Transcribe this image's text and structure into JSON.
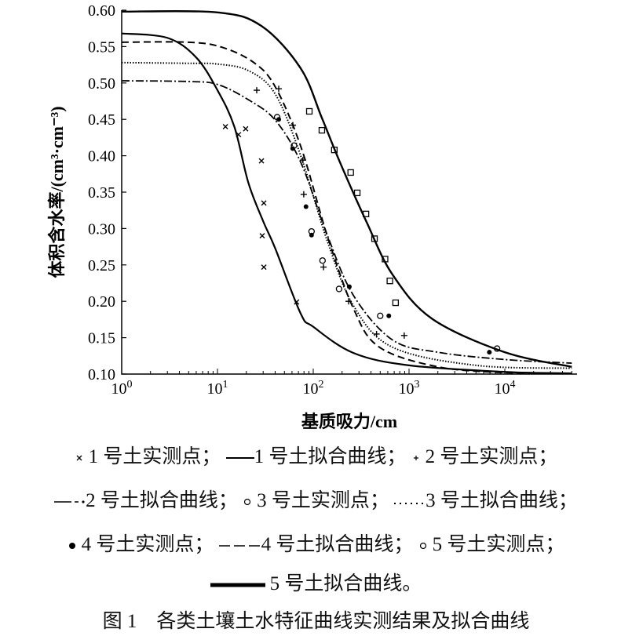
{
  "chart_data": {
    "type": "scatter",
    "title": "",
    "xlabel": "基质吸力/cm",
    "ylabel": "体积含水率/(cm³·cm⁻³)",
    "x_scale": "log",
    "xlim": [
      1,
      50000
    ],
    "ylim": [
      0.1,
      0.6
    ],
    "x_ticks": [
      1,
      10,
      100,
      1000,
      10000
    ],
    "x_tick_labels": [
      {
        "base": "10",
        "exp": "0"
      },
      {
        "base": "10",
        "exp": "1"
      },
      {
        "base": "10",
        "exp": "2"
      },
      {
        "base": "10",
        "exp": "3"
      },
      {
        "base": "10",
        "exp": "4"
      }
    ],
    "y_ticks": [
      0.1,
      0.15,
      0.2,
      0.25,
      0.3,
      0.35,
      0.4,
      0.45,
      0.5,
      0.55,
      0.6
    ],
    "y_tick_labels": [
      "0.10",
      "0.15",
      "0.20",
      "0.25",
      "0.30",
      "0.35",
      "0.40",
      "0.45",
      "0.50",
      "0.55",
      "0.60"
    ],
    "grid": false,
    "points": [
      {
        "name": "1 号土实测点",
        "marker": "x",
        "data": [
          [
            12.1,
            0.44
          ],
          [
            16.6,
            0.429
          ],
          [
            19.7,
            0.437
          ],
          [
            28.8,
            0.393
          ],
          [
            30.5,
            0.335
          ],
          [
            29.3,
            0.29
          ],
          [
            30.5,
            0.247
          ],
          [
            67,
            0.199
          ]
        ]
      },
      {
        "name": "2 号土实测点",
        "marker": "plus",
        "data": [
          [
            25.7,
            0.49
          ],
          [
            43.6,
            0.492
          ],
          [
            61.3,
            0.442
          ],
          [
            78,
            0.394
          ],
          [
            79.6,
            0.347
          ],
          [
            128,
            0.247
          ],
          [
            234,
            0.2
          ],
          [
            458,
            0.155
          ],
          [
            891,
            0.153
          ]
        ]
      },
      {
        "name": "3 号土实测点",
        "marker": "circle",
        "data": [
          [
            42,
            0.453
          ],
          [
            63,
            0.414
          ],
          [
            96,
            0.296
          ],
          [
            125,
            0.256
          ],
          [
            186,
            0.217
          ],
          [
            500,
            0.18
          ],
          [
            8300,
            0.135
          ]
        ]
      },
      {
        "name": "4 号土实测点",
        "marker": "dot",
        "data": [
          [
            43.6,
            0.45
          ],
          [
            61,
            0.41
          ],
          [
            84,
            0.33
          ],
          [
            96,
            0.291
          ],
          [
            238,
            0.22
          ],
          [
            615,
            0.18
          ],
          [
            6900,
            0.13
          ]
        ]
      },
      {
        "name": "5 号土实测点",
        "marker": "square",
        "data": [
          [
            91,
            0.461
          ],
          [
            123,
            0.435
          ],
          [
            166,
            0.408
          ],
          [
            246,
            0.377
          ],
          [
            288,
            0.349
          ],
          [
            355,
            0.32
          ],
          [
            436,
            0.286
          ],
          [
            562,
            0.258
          ],
          [
            631,
            0.228
          ],
          [
            724,
            0.198
          ]
        ]
      }
    ],
    "curves": [
      {
        "name": "1 号土拟合曲线",
        "style": "solid",
        "data": [
          [
            1,
            0.568
          ],
          [
            3,
            0.562
          ],
          [
            6,
            0.535
          ],
          [
            10,
            0.49
          ],
          [
            15,
            0.44
          ],
          [
            21,
            0.363
          ],
          [
            30,
            0.31
          ],
          [
            40,
            0.273
          ],
          [
            74,
            0.183
          ],
          [
            100,
            0.165
          ],
          [
            263,
            0.129
          ],
          [
            1000,
            0.112
          ],
          [
            10000,
            0.103
          ],
          [
            50000,
            0.101
          ]
        ]
      },
      {
        "name": "2 号土拟合曲线",
        "style": "dashdot",
        "data": [
          [
            1,
            0.503
          ],
          [
            5,
            0.502
          ],
          [
            10,
            0.498
          ],
          [
            21,
            0.477
          ],
          [
            40,
            0.449
          ],
          [
            74,
            0.391
          ],
          [
            140,
            0.291
          ],
          [
            263,
            0.208
          ],
          [
            670,
            0.147
          ],
          [
            2000,
            0.13
          ],
          [
            10000,
            0.12
          ],
          [
            50000,
            0.115
          ]
        ]
      },
      {
        "name": "3 号土拟合曲线",
        "style": "dotted",
        "data": [
          [
            1,
            0.528
          ],
          [
            5,
            0.527
          ],
          [
            10,
            0.526
          ],
          [
            21,
            0.517
          ],
          [
            40,
            0.485
          ],
          [
            74,
            0.4
          ],
          [
            140,
            0.283
          ],
          [
            263,
            0.194
          ],
          [
            670,
            0.137
          ],
          [
            5000,
            0.112
          ],
          [
            50000,
            0.108
          ]
        ]
      },
      {
        "name": "4 号土拟合曲线",
        "style": "dashed",
        "data": [
          [
            1,
            0.556
          ],
          [
            5,
            0.556
          ],
          [
            11.2,
            0.549
          ],
          [
            24,
            0.528
          ],
          [
            40,
            0.495
          ],
          [
            74,
            0.413
          ],
          [
            140,
            0.29
          ],
          [
            263,
            0.19
          ],
          [
            490,
            0.137
          ],
          [
            2000,
            0.11
          ],
          [
            10000,
            0.102
          ],
          [
            50000,
            0.101
          ]
        ]
      },
      {
        "name": "5 号土拟合曲线",
        "style": "solid-bold",
        "data": [
          [
            1,
            0.598
          ],
          [
            10,
            0.597
          ],
          [
            29,
            0.578
          ],
          [
            74,
            0.52
          ],
          [
            123,
            0.452
          ],
          [
            190,
            0.391
          ],
          [
            360,
            0.309
          ],
          [
            670,
            0.237
          ],
          [
            1740,
            0.176
          ],
          [
            10000,
            0.13
          ],
          [
            50000,
            0.11
          ]
        ]
      }
    ]
  },
  "legend": {
    "row1": {
      "item1": "1 号土实测点；",
      "item2": "1 号土拟合曲线；",
      "item3": "2 号土实测点；"
    },
    "row2": {
      "item1": "2 号土拟合曲线；",
      "item2": "3 号土实测点；",
      "item3": "3 号土拟合曲线；"
    },
    "row3": {
      "item1": "4 号土实测点；",
      "item2": "4 号土拟合曲线；",
      "item3": "5 号土实测点；"
    },
    "row4": {
      "item1": "5 号土拟合曲线。"
    }
  },
  "caption": "图 1　各类土壤土水特征曲线实测结果及拟合曲线"
}
